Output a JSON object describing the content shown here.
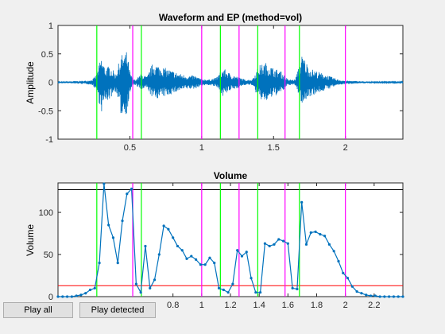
{
  "figure": {
    "buttons": {
      "play_all": "Play all",
      "play_detected": "Play detected"
    }
  },
  "chart_data": [
    {
      "type": "line",
      "title": "Waveform and EP (method=vol)",
      "xlabel": "",
      "ylabel": "Amplitude",
      "xlim": [
        0,
        2.4
      ],
      "ylim": [
        -1,
        1
      ],
      "x_ticks": [
        0.5,
        1,
        1.5,
        2
      ],
      "x_tick_labels": [
        "0.5",
        "1",
        "1.5",
        "2"
      ],
      "y_ticks": [
        -1,
        -0.5,
        0,
        0.5,
        1
      ],
      "y_tick_labels": [
        "-1",
        "-0.5",
        "0",
        "0.5",
        "1"
      ],
      "line_color": "#0072bd",
      "envelope": {
        "x": [
          0,
          0.1,
          0.2,
          0.24,
          0.27,
          0.3,
          0.33,
          0.36,
          0.4,
          0.44,
          0.48,
          0.5,
          0.52,
          0.54,
          0.58,
          0.62,
          0.66,
          0.7,
          0.75,
          0.8,
          0.85,
          0.9,
          0.95,
          1.0,
          1.05,
          1.1,
          1.15,
          1.2,
          1.25,
          1.3,
          1.35,
          1.4,
          1.45,
          1.5,
          1.55,
          1.6,
          1.65,
          1.7,
          1.75,
          1.8,
          1.85,
          1.9,
          1.95,
          2.0,
          2.1,
          2.2,
          2.4
        ],
        "top": [
          0.01,
          0.02,
          0.03,
          0.05,
          0.15,
          0.45,
          0.25,
          0.3,
          0.15,
          0.48,
          0.55,
          0.2,
          0.05,
          0.05,
          0.15,
          0.1,
          0.35,
          0.3,
          0.25,
          0.2,
          0.15,
          0.12,
          0.12,
          0.06,
          0.05,
          0.08,
          0.25,
          0.15,
          0.1,
          0.05,
          0.05,
          0.3,
          0.35,
          0.25,
          0.2,
          0.05,
          0.05,
          0.5,
          0.25,
          0.2,
          0.15,
          0.1,
          0.05,
          0.03,
          0.02,
          0.01,
          0.01
        ],
        "bottom": [
          -0.01,
          -0.02,
          -0.03,
          -0.05,
          -0.15,
          -0.55,
          -0.35,
          -0.3,
          -0.15,
          -0.6,
          -0.55,
          -0.2,
          -0.05,
          -0.05,
          -0.15,
          -0.1,
          -0.3,
          -0.28,
          -0.25,
          -0.2,
          -0.15,
          -0.12,
          -0.12,
          -0.06,
          -0.05,
          -0.08,
          -0.25,
          -0.15,
          -0.1,
          -0.05,
          -0.05,
          -0.3,
          -0.35,
          -0.25,
          -0.2,
          -0.05,
          -0.05,
          -0.4,
          -0.25,
          -0.2,
          -0.15,
          -0.1,
          -0.05,
          -0.03,
          -0.02,
          -0.01,
          -0.01
        ]
      },
      "vlines_green": [
        0.27,
        0.58,
        1.13,
        1.39,
        1.68
      ],
      "vlines_magenta": [
        0.52,
        1.0,
        1.26,
        1.58,
        2.0
      ],
      "green_color": "#00ff00",
      "magenta_color": "#ff00ff"
    },
    {
      "type": "line",
      "title": "Volume",
      "xlabel": "",
      "ylabel": "Volume",
      "xlim": [
        0,
        2.4
      ],
      "ylim": [
        0,
        135
      ],
      "x_ticks": [
        0.8,
        1,
        1.2,
        1.4,
        1.6,
        1.8,
        2,
        2.2
      ],
      "x_tick_labels": [
        "0.8",
        "1",
        "1.2",
        "1.4",
        "1.6",
        "1.8",
        "2",
        "2.2"
      ],
      "y_ticks": [
        0,
        50,
        100
      ],
      "y_tick_labels": [
        "0",
        "50",
        "100"
      ],
      "line_color": "#0072bd",
      "series": [
        {
          "x": [
            0.0,
            0.032,
            0.064,
            0.096,
            0.128,
            0.16,
            0.192,
            0.224,
            0.256,
            0.288,
            0.32,
            0.352,
            0.384,
            0.416,
            0.448,
            0.48,
            0.512,
            0.544,
            0.576,
            0.608,
            0.64,
            0.672,
            0.704,
            0.736,
            0.768,
            0.8,
            0.832,
            0.864,
            0.896,
            0.928,
            0.96,
            0.992,
            1.024,
            1.056,
            1.088,
            1.12,
            1.152,
            1.184,
            1.216,
            1.248,
            1.28,
            1.312,
            1.344,
            1.376,
            1.408,
            1.44,
            1.472,
            1.504,
            1.536,
            1.568,
            1.6,
            1.632,
            1.664,
            1.696,
            1.728,
            1.76,
            1.792,
            1.824,
            1.856,
            1.888,
            1.92,
            1.952,
            1.984,
            2.016,
            2.048,
            2.08,
            2.112,
            2.144,
            2.176,
            2.208,
            2.24,
            2.272,
            2.304,
            2.336,
            2.368,
            2.4
          ],
          "y": [
            0,
            0,
            0,
            0,
            1,
            2,
            4,
            8,
            10,
            40,
            134,
            85,
            70,
            40,
            90,
            122,
            128,
            15,
            5,
            60,
            10,
            20,
            50,
            84,
            80,
            70,
            60,
            55,
            45,
            48,
            44,
            38,
            38,
            46,
            40,
            10,
            8,
            5,
            15,
            55,
            48,
            53,
            22,
            5,
            5,
            63,
            60,
            62,
            68,
            66,
            63,
            10,
            9,
            112,
            62,
            76,
            77,
            74,
            72,
            62,
            54,
            42,
            28,
            22,
            12,
            6,
            4,
            2,
            1,
            1,
            0,
            0,
            0,
            0,
            0,
            0
          ]
        }
      ],
      "hline_black": 127,
      "hline_red": 13,
      "black_color": "#000000",
      "red_color": "#ff0000",
      "vlines_green": [
        0.27,
        0.58,
        1.13,
        1.39,
        1.68
      ],
      "vlines_magenta": [
        0.52,
        1.0,
        1.26,
        1.58,
        2.0
      ],
      "green_color": "#00ff00",
      "magenta_color": "#ff00ff"
    }
  ]
}
